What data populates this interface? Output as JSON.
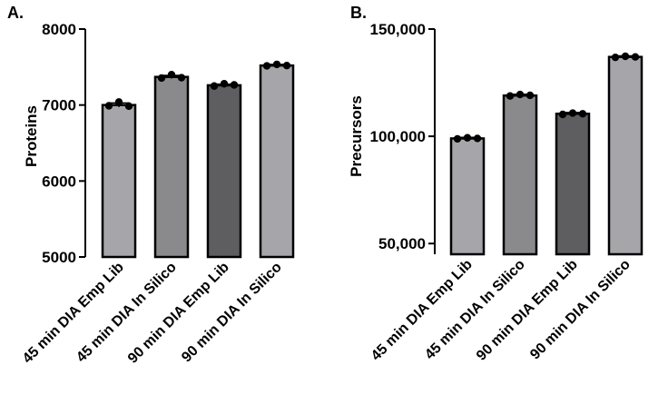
{
  "chart_data": [
    {
      "type": "bar",
      "panel_label": "A.",
      "title": "",
      "xlabel": "",
      "ylabel": "Proteins",
      "ylim": [
        5000,
        8000
      ],
      "yticks": [
        5000,
        6000,
        7000,
        8000
      ],
      "ytick_labels": [
        "5000",
        "6000",
        "7000",
        "8000"
      ],
      "categories": [
        "45 min DIA Emp Lib",
        "45 min DIA In Silico",
        "90 min DIA Emp Lib",
        "90 min DIA In Silico"
      ],
      "values": [
        7000,
        7370,
        7260,
        7520
      ],
      "replicates": [
        [
          6990,
          7040,
          6985
        ],
        [
          7355,
          7400,
          7360
        ],
        [
          7250,
          7280,
          7265
        ],
        [
          7515,
          7535,
          7520
        ]
      ],
      "error": [
        28,
        20,
        15,
        15
      ],
      "colors": [
        "#a6a6aa",
        "#8a8a8c",
        "#5e5e60",
        "#a6a6aa"
      ]
    },
    {
      "type": "bar",
      "panel_label": "B.",
      "title": "",
      "xlabel": "",
      "ylabel": "Precursors",
      "ylim": [
        45000,
        150000
      ],
      "yticks": [
        50000,
        100000,
        150000
      ],
      "ytick_labels": [
        "50,000",
        "100,000",
        "150,000"
      ],
      "categories": [
        "45 min DIA Emp Lib",
        "45 min DIA In Silico",
        "90 min DIA Emp Lib",
        "90 min DIA In Silico"
      ],
      "values": [
        99000,
        119000,
        110500,
        137000
      ],
      "replicates": [
        [
          98800,
          99300,
          99000
        ],
        [
          118800,
          119500,
          119100
        ],
        [
          110200,
          110800,
          110500
        ],
        [
          136800,
          137300,
          137000
        ]
      ],
      "error": [
        500,
        600,
        600,
        500
      ],
      "colors": [
        "#a6a6aa",
        "#8a8a8c",
        "#5e5e60",
        "#a6a6aa"
      ]
    }
  ]
}
